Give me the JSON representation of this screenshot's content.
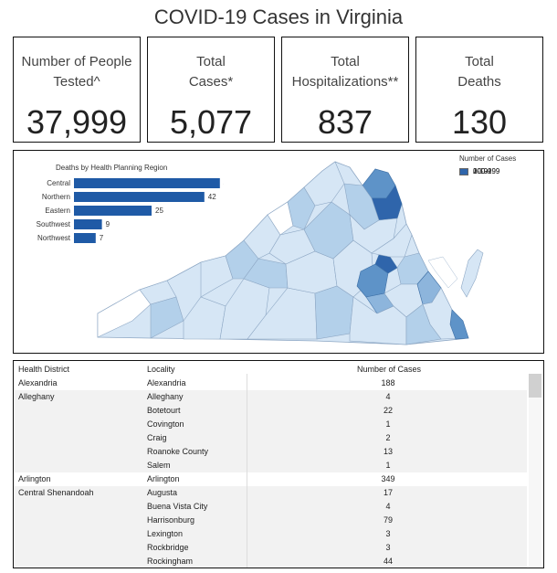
{
  "title": "COVID-19 Cases in Virginia",
  "kpis": [
    {
      "label_line1": "Number of People",
      "label_line2": "Tested^",
      "value": "37,999"
    },
    {
      "label_line1": "Total",
      "label_line2": "Cases*",
      "value": "5,077"
    },
    {
      "label_line1": "Total",
      "label_line2": "Hospitalizations**",
      "value": "837"
    },
    {
      "label_line1": "Total",
      "label_line2": "Deaths",
      "value": "130"
    }
  ],
  "chart_data": {
    "type": "bar",
    "title": "Deaths by Health Planning Region",
    "categories": [
      "Central",
      "Northern",
      "Eastern",
      "Southwest",
      "Northwest"
    ],
    "values": [
      47,
      42,
      25,
      9,
      7
    ],
    "color": "#1f5aa6",
    "orientation": "horizontal"
  },
  "legend": {
    "title": "Number of Cases",
    "items": [
      {
        "label": "0",
        "color": "#ffffff"
      },
      {
        "label": "1-19",
        "color": "#d6e6f5"
      },
      {
        "label": "20-99",
        "color": "#b3d0ea"
      },
      {
        "label": "100-199",
        "color": "#8db5dc"
      },
      {
        "label": "200-299",
        "color": "#5e93c8"
      },
      {
        "label": "300+",
        "color": "#2f65ab"
      }
    ]
  },
  "table": {
    "headers": {
      "district": "Health District",
      "locality": "Locality",
      "cases": "Number of Cases"
    },
    "rows": [
      {
        "district": "Alexandria",
        "locality": "Alexandria",
        "cases": "188"
      },
      {
        "district": "Alleghany",
        "locality": "Alleghany",
        "cases": "4"
      },
      {
        "district": "",
        "locality": "Botetourt",
        "cases": "22"
      },
      {
        "district": "",
        "locality": "Covington",
        "cases": "1"
      },
      {
        "district": "",
        "locality": "Craig",
        "cases": "2"
      },
      {
        "district": "",
        "locality": "Roanoke County",
        "cases": "13"
      },
      {
        "district": "",
        "locality": "Salem",
        "cases": "1"
      },
      {
        "district": "Arlington",
        "locality": "Arlington",
        "cases": "349"
      },
      {
        "district": "Central Shenandoah",
        "locality": "Augusta",
        "cases": "17"
      },
      {
        "district": "",
        "locality": "Buena Vista City",
        "cases": "4"
      },
      {
        "district": "",
        "locality": "Harrisonburg",
        "cases": "79"
      },
      {
        "district": "",
        "locality": "Lexington",
        "cases": "3"
      },
      {
        "district": "",
        "locality": "Rockbridge",
        "cases": "3"
      },
      {
        "district": "",
        "locality": "Rockingham",
        "cases": "44"
      }
    ],
    "group_shading": [
      "#ffffff",
      "#f2f2f2",
      "#f2f2f2",
      "#f2f2f2",
      "#f2f2f2",
      "#f2f2f2",
      "#f2f2f2",
      "#ffffff",
      "#f2f2f2",
      "#f2f2f2",
      "#f2f2f2",
      "#f2f2f2",
      "#f2f2f2",
      "#f2f2f2"
    ]
  }
}
